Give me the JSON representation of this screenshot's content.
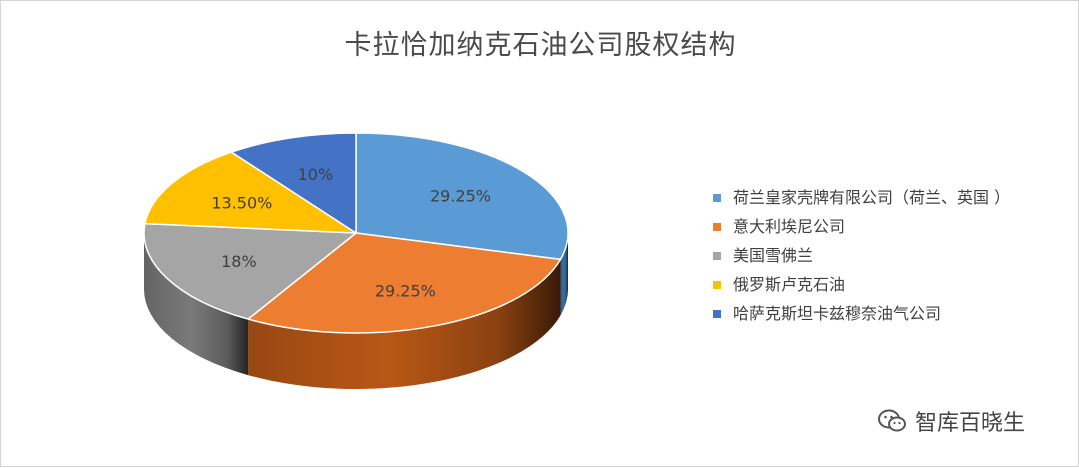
{
  "chart_data": {
    "type": "pie",
    "title": "卡拉恰加纳克石油公司股权结构",
    "legend_position": "right",
    "slices": [
      {
        "name": "荷兰皇家壳牌有限公司（荷兰、英国 ）",
        "value": 29.25,
        "label": "29.25%",
        "color": "#5b9bd5",
        "side_color": "#3a6f9f"
      },
      {
        "name": "意大利埃尼公司",
        "value": 29.25,
        "label": "29.25%",
        "color": "#ed7d31",
        "side_color": "#b95716"
      },
      {
        "name": "美国雪佛兰",
        "value": 18,
        "label": "18%",
        "color": "#a5a5a5",
        "side_color": "#7a7a7a"
      },
      {
        "name": "俄罗斯卢克石油",
        "value": 13.5,
        "label": "13.50%",
        "color": "#ffc000",
        "side_color": "#c79500"
      },
      {
        "name": "哈萨克斯坦卡兹穆奈油气公司",
        "value": 10,
        "label": "10%",
        "color": "#4472c4",
        "side_color": "#2f5597"
      }
    ]
  },
  "watermark": {
    "text": "智库百晓生",
    "icon": "wechat-icon"
  }
}
